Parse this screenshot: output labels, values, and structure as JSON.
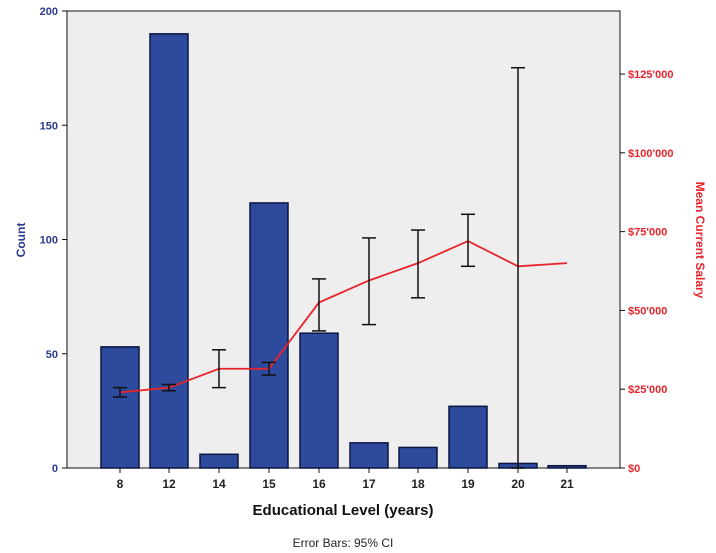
{
  "chart_data": {
    "type": "bar",
    "title": "",
    "xlabel": "Educational Level (years)",
    "ylabel": "Count",
    "y2label": "Mean Current Salary",
    "footnote": "Error Bars: 95% CI",
    "categories": [
      "8",
      "12",
      "14",
      "15",
      "16",
      "17",
      "18",
      "19",
      "20",
      "21"
    ],
    "ylim": [
      0,
      200
    ],
    "y2lim": [
      0,
      145000
    ],
    "y_ticks": [
      0,
      50,
      100,
      150,
      200
    ],
    "y2_ticks": [
      {
        "value": 0,
        "label": "$0"
      },
      {
        "value": 25000,
        "label": "$25'000"
      },
      {
        "value": 50000,
        "label": "$50'000"
      },
      {
        "value": 75000,
        "label": "$75'000"
      },
      {
        "value": 100000,
        "label": "$100'000"
      },
      {
        "value": 125000,
        "label": "$125'000"
      }
    ],
    "grid": false,
    "legend": "none",
    "series": [
      {
        "kind": "bar",
        "axis": "left",
        "color": "#2e4a9c",
        "values": [
          53,
          190,
          6,
          116,
          59,
          11,
          9,
          27,
          2,
          1
        ]
      },
      {
        "kind": "line",
        "axis": "right",
        "color": "#e8242b",
        "values": [
          24000,
          25500,
          31500,
          31500,
          52500,
          59500,
          65000,
          72000,
          64000,
          65000
        ],
        "ci_lower": [
          22500,
          24500,
          25500,
          29500,
          43500,
          45500,
          54000,
          64000,
          0,
          null
        ],
        "ci_upper": [
          25500,
          26500,
          37500,
          33500,
          60000,
          73000,
          75500,
          80500,
          127000,
          null
        ]
      }
    ]
  }
}
